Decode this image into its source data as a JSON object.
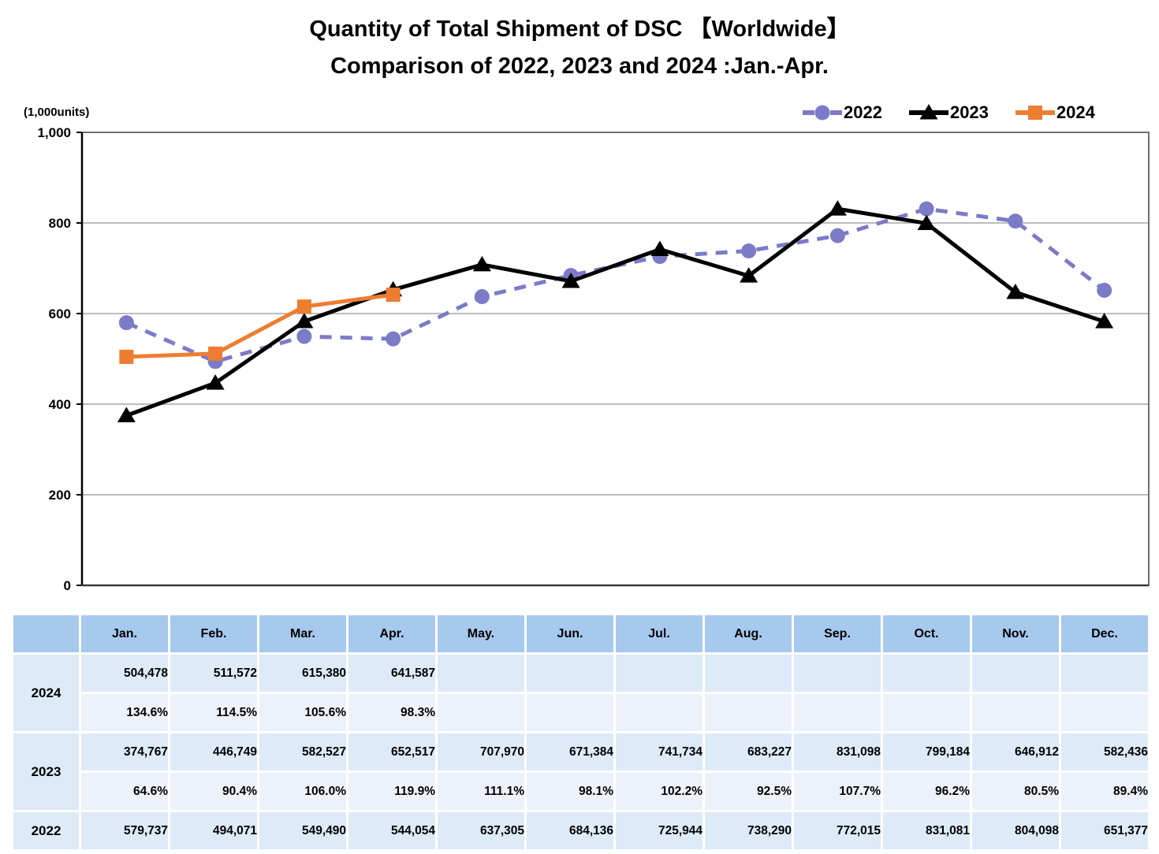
{
  "title": {
    "line1": "Quantity of Total Shipment of DSC 【Worldwide】",
    "line2": "Comparison of 2022, 2023 and 2024 :Jan.-Apr."
  },
  "axis_unit_label": "(1,000units)",
  "chart_data": {
    "type": "line",
    "title": "Quantity of Total Shipment of DSC 【Worldwide】 Comparison of 2022, 2023 and 2024 :Jan.-Apr.",
    "unit": "1,000 units",
    "categories": [
      "Jan.",
      "Feb.",
      "Mar.",
      "Apr.",
      "May.",
      "Jun.",
      "Jul.",
      "Aug.",
      "Sep.",
      "Oct.",
      "Nov.",
      "Dec."
    ],
    "ylim": [
      0,
      1000
    ],
    "yticks": [
      0,
      200,
      400,
      600,
      800,
      1000
    ],
    "ytick_labels": [
      "0",
      "200",
      "400",
      "600",
      "800",
      "1,000"
    ],
    "grid": true,
    "legend_position": "top-right",
    "series": [
      {
        "name": "2022",
        "color": "#7B7BC8",
        "marker": "circle",
        "line_style": "dashed",
        "values": [
          579.737,
          494.071,
          549.49,
          544.054,
          637.305,
          684.136,
          725.944,
          738.29,
          772.015,
          831.081,
          804.098,
          651.377
        ]
      },
      {
        "name": "2023",
        "color": "#000000",
        "marker": "triangle",
        "line_style": "solid",
        "values": [
          374.767,
          446.749,
          582.527,
          652.517,
          707.97,
          671.384,
          741.734,
          683.227,
          831.098,
          799.184,
          646.912,
          582.436
        ]
      },
      {
        "name": "2024",
        "color": "#ED7D31",
        "marker": "square",
        "line_style": "solid",
        "values": [
          504.478,
          511.572,
          615.38,
          641.587,
          null,
          null,
          null,
          null,
          null,
          null,
          null,
          null
        ]
      }
    ]
  },
  "table": {
    "corner_label": "",
    "months": [
      "Jan.",
      "Feb.",
      "Mar.",
      "Apr.",
      "May.",
      "Jun.",
      "Jul.",
      "Aug.",
      "Sep.",
      "Oct.",
      "Nov.",
      "Dec."
    ],
    "rows": [
      {
        "year": "2024",
        "values": [
          "504,478",
          "511,572",
          "615,380",
          "641,587",
          "",
          "",
          "",
          "",
          "",
          "",
          "",
          ""
        ],
        "percents": [
          "134.6%",
          "114.5%",
          "105.6%",
          "98.3%",
          "",
          "",
          "",
          "",
          "",
          "",
          "",
          ""
        ]
      },
      {
        "year": "2023",
        "values": [
          "374,767",
          "446,749",
          "582,527",
          "652,517",
          "707,970",
          "671,384",
          "741,734",
          "683,227",
          "831,098",
          "799,184",
          "646,912",
          "582,436"
        ],
        "percents": [
          "64.6%",
          "90.4%",
          "106.0%",
          "119.9%",
          "111.1%",
          "98.1%",
          "102.2%",
          "92.5%",
          "107.7%",
          "96.2%",
          "80.5%",
          "89.4%"
        ]
      },
      {
        "year": "2022",
        "values": [
          "579,737",
          "494,071",
          "549,490",
          "544,054",
          "637,305",
          "684,136",
          "725,944",
          "738,290",
          "772,015",
          "831,081",
          "804,098",
          "651,377"
        ],
        "percents": null
      }
    ]
  },
  "colors": {
    "series_2022": "#7B7BC8",
    "series_2023": "#000000",
    "series_2024": "#ED7D31",
    "gridline": "#B3B3B3",
    "plot_border": "#6E6E6E",
    "axis": "#000000",
    "table_header_bg": "#A6C9ED",
    "table_value_bg": "#DDEAF7",
    "table_percent_bg": "#EDF2FA"
  }
}
